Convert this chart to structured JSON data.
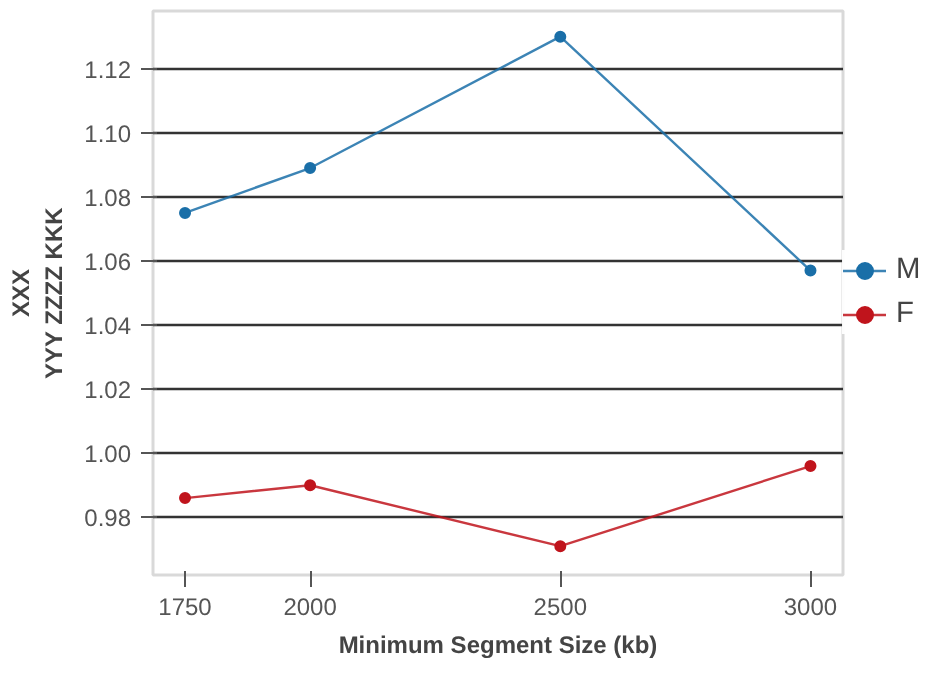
{
  "chart_data": {
    "type": "line",
    "xlabel": "Minimum Segment Size (kb)",
    "ylabel": "XXX\nYYY ZZZZ KKK",
    "x": [
      1750,
      2000,
      2500,
      3000
    ],
    "series": [
      {
        "name": "M",
        "color": "#1a6fa8",
        "values": [
          1.075,
          1.089,
          1.13,
          1.057
        ]
      },
      {
        "name": "F",
        "color": "#c0141c",
        "values": [
          0.986,
          0.99,
          0.971,
          0.996
        ]
      }
    ],
    "xlim": [
      1686,
      3065
    ],
    "ylim": [
      0.962,
      1.138
    ],
    "xticks": [
      1750,
      2000,
      2500,
      3000
    ],
    "yticks": [
      0.98,
      {
        "value": 1,
        "label": "1.00"
      },
      1.02,
      1.04,
      1.06,
      1.08,
      {
        "value": 1.1,
        "label": "1.10"
      },
      1.12
    ],
    "grid": "y",
    "legend": "right",
    "marker": "circle",
    "line_style": "solid"
  }
}
